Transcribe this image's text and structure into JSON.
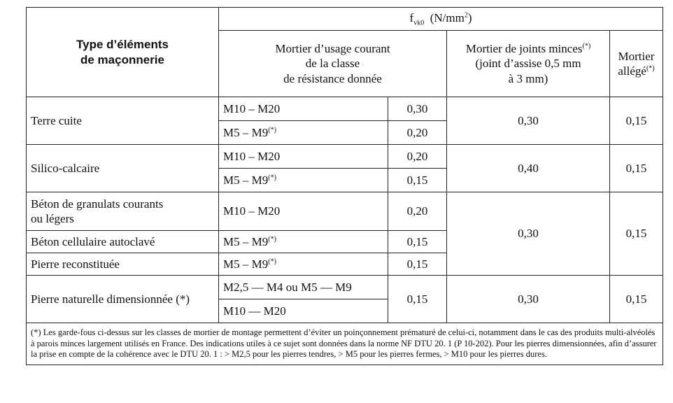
{
  "header": {
    "type_col_label_line1": "Type d’éléments",
    "type_col_label_line2": "de maçonnerie",
    "fvk_symbol": "f",
    "fvk_sub": "vk0",
    "fvk_unit": "(N/mm",
    "fvk_unit_sup": "2",
    "fvk_unit_close": ")",
    "col_courant_line1": "Mortier d’usage courant",
    "col_courant_line2": "de la classe",
    "col_courant_line3": "de résistance donnée",
    "col_minces_line1": "Mortier de joints minces",
    "col_minces_sup": "(*)",
    "col_minces_line2": "(joint d’assise  0,5 mm",
    "col_minces_line3": "à 3 mm)",
    "col_allege_line1": "Mortier",
    "col_allege_line2": "allégé",
    "col_allege_sup": "(*)"
  },
  "rows": {
    "terre_cuite": {
      "label": "Terre cuite",
      "m1": "M10 – M20",
      "v1": "0,30",
      "m2": "M5 – M9",
      "m2_sup": "(*)",
      "v2": "0,20",
      "minces": "0,30",
      "allege": "0,15"
    },
    "silico": {
      "label": "Silico-calcaire",
      "m1": "M10 – M20",
      "v1": "0,20",
      "m2": "M5 – M9",
      "m2_sup": "(*)",
      "v2": "0,15",
      "minces": "0,40",
      "allege": "0,15"
    },
    "beton_granulats": {
      "label_line1": "Béton de granulats courants",
      "label_line2": "ou légers",
      "m1": "M10 – M20",
      "v1": "0,20"
    },
    "beton_cellulaire": {
      "label": "Béton cellulaire autoclavé",
      "m1": "M5 – M9",
      "m1_sup": "(*)",
      "v1": "0,15"
    },
    "pierre_reconstituee": {
      "label": "Pierre reconstituée",
      "m1": "M5 – M9",
      "m1_sup": "(*)",
      "v1": "0,15"
    },
    "beton_group": {
      "minces": "0,30",
      "allege": "0,15"
    },
    "pierre_naturelle": {
      "label": "Pierre naturelle dimensionnée (*)",
      "m1": "M2,5 — M4 ou M5 — M9",
      "m2": "M10 — M20",
      "v": "0,15",
      "minces": "0,30",
      "allege": "0,15"
    }
  },
  "note": "(*) Les garde-fous ci-dessus sur les classes de mortier de montage permettent d’éviter un poinçonnement prématuré de celui-ci, notamment dans le cas des produits multi-alvéolés à parois minces largement utilisés en France. Des indications utiles à ce sujet sont données dans la norme NF DTU 20. 1 (P 10-202). Pour les pierres dimensionnées, afin d’assurer la prise en compte de la cohérence avec le DTU 20. 1 : > M2,5 pour les pierres tendres, > M5 pour les pierres fermes, > M10 pour les pierres dures."
}
